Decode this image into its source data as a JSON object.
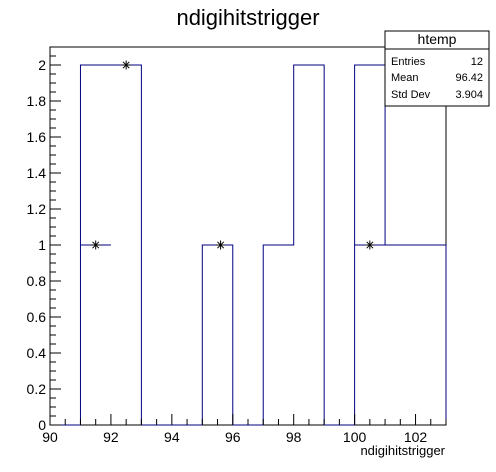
{
  "chart_data": {
    "type": "bar",
    "title": "ndigihitstrigger",
    "xlabel": "ndigihitstrigger",
    "ylabel": "",
    "xlim": [
      90,
      103
    ],
    "ylim": [
      0,
      2.1
    ],
    "x_ticks": [
      90,
      92,
      94,
      96,
      98,
      100,
      102
    ],
    "y_ticks": [
      0,
      0.2,
      0.4,
      0.6,
      0.8,
      1,
      1.2,
      1.4,
      1.6,
      1.8,
      2
    ],
    "histogram": {
      "bin_edges": [
        90,
        91,
        92,
        93,
        94,
        95,
        96,
        97,
        98,
        99,
        100,
        101,
        102,
        103
      ],
      "counts": [
        0,
        2,
        2,
        0,
        0,
        1,
        0,
        1,
        2,
        0,
        2,
        1,
        1
      ]
    },
    "second_histogram": {
      "segments": [
        {
          "x0": 91,
          "x1": 92,
          "y": 1
        },
        {
          "x0": 92,
          "x1": 93,
          "y": 2
        },
        {
          "x0": 100,
          "x1": 103,
          "y": 1
        }
      ]
    },
    "markers": [
      {
        "x": 91.5,
        "y": 1
      },
      {
        "x": 92.5,
        "y": 2
      },
      {
        "x": 95.6,
        "y": 1
      },
      {
        "x": 100.5,
        "y": 1
      }
    ],
    "grid": false,
    "legend_placement": "top-right"
  },
  "stats_box": {
    "name": "htemp",
    "rows": [
      {
        "label": "Entries",
        "value": "12"
      },
      {
        "label": "Mean",
        "value": "96.42"
      },
      {
        "label": "Std Dev",
        "value": "3.904"
      }
    ]
  },
  "colors": {
    "histogram_line": "#000080",
    "axis": "#000000",
    "marker": "#000000"
  }
}
